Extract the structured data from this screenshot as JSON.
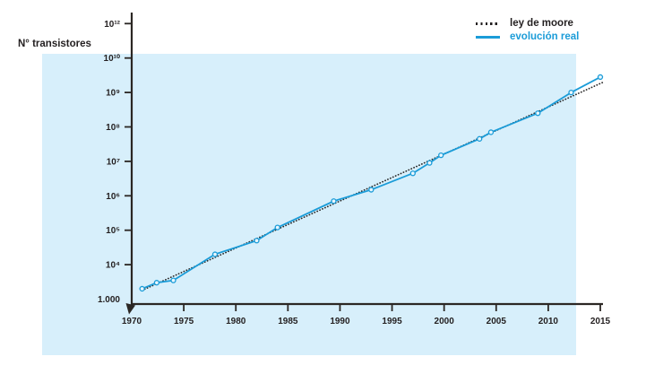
{
  "y_axis_title": "N° transistores",
  "legend": {
    "position": "top-right",
    "items": [
      {
        "label": "ley de moore",
        "style": "dotted",
        "color": "#231f20"
      },
      {
        "label": "evolución real",
        "style": "solid",
        "color": "#1b9cd8"
      }
    ]
  },
  "colors": {
    "plot_background": "#d7effb",
    "real_line": "#1b9cd8",
    "marker_fill": "#e9f6fd",
    "moore_line": "#2a2a2a",
    "axis": "#2b2724",
    "text": "#231f20"
  },
  "chart_data": {
    "type": "line",
    "title": "",
    "xlabel": "",
    "ylabel": "N° transistores",
    "y_scale": "log",
    "grid": false,
    "legend_position": "top-right",
    "xlim": [
      1970,
      2015
    ],
    "x_ticks": [
      "1970",
      "1975",
      "1980",
      "1985",
      "1990",
      "1995",
      "2000",
      "2005",
      "2010",
      "2015"
    ],
    "y_ticks": [
      "1.000",
      "10⁴",
      "10⁵",
      "10⁶",
      "10⁷",
      "10⁸",
      "10⁹",
      "10¹⁰",
      "10¹²"
    ],
    "series": [
      {
        "name": "ley de moore",
        "style": "dotted",
        "points": [
          [
            1971,
            1800
          ],
          [
            2015.3,
            2000000000
          ]
        ]
      },
      {
        "name": "evolución real",
        "style": "solid-markers",
        "points": [
          [
            1971,
            2000
          ],
          [
            1972.4,
            3000
          ],
          [
            1974,
            3500
          ],
          [
            1978,
            20000
          ],
          [
            1982,
            50000
          ],
          [
            1984,
            120000
          ],
          [
            1989.4,
            700000
          ],
          [
            1993,
            1500000
          ],
          [
            1997,
            4500000
          ],
          [
            1998.6,
            9000000
          ],
          [
            1999.7,
            15000000
          ],
          [
            2003.4,
            45000000
          ],
          [
            2004.5,
            70000000
          ],
          [
            2009,
            250000000
          ],
          [
            2012.2,
            1000000000
          ],
          [
            2015,
            2800000000
          ]
        ]
      }
    ]
  }
}
